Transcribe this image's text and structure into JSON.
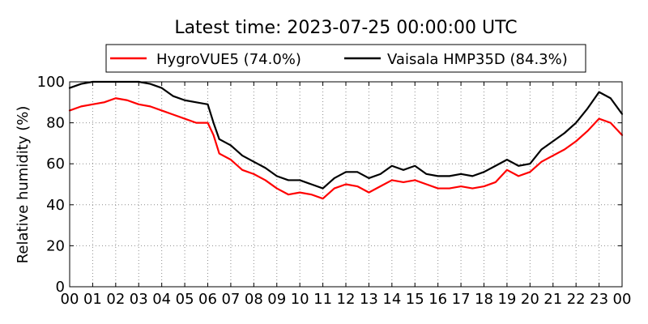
{
  "chart_data": {
    "type": "line",
    "title": "Latest time: 2023-07-25 00:00:00 UTC",
    "xlabel": "",
    "ylabel": "Relative humidity (%)",
    "x_unit": "hour",
    "xlim": [
      0,
      24
    ],
    "ylim": [
      0,
      100
    ],
    "grid": true,
    "legend_position": "top-center",
    "xtick_values": [
      0,
      1,
      2,
      3,
      4,
      5,
      6,
      7,
      8,
      9,
      10,
      11,
      12,
      13,
      14,
      15,
      16,
      17,
      18,
      19,
      20,
      21,
      22,
      23,
      24
    ],
    "xtick_labels": [
      "00",
      "01",
      "02",
      "03",
      "04",
      "05",
      "06",
      "07",
      "08",
      "09",
      "10",
      "11",
      "12",
      "13",
      "14",
      "15",
      "16",
      "17",
      "18",
      "19",
      "20",
      "21",
      "22",
      "23",
      "00"
    ],
    "yticks": [
      0,
      20,
      40,
      60,
      80,
      100
    ],
    "series": [
      {
        "name": "HygroVUE5 (74.0%)",
        "color": "#ff0000",
        "x": [
          0,
          0.5,
          1,
          1.5,
          2,
          2.5,
          3,
          3.5,
          4,
          4.5,
          5,
          5.5,
          6,
          6.25,
          6.5,
          7,
          7.5,
          8,
          8.5,
          9,
          9.5,
          10,
          10.5,
          11,
          11.5,
          12,
          12.5,
          13,
          13.5,
          14,
          14.5,
          15,
          15.5,
          16,
          16.5,
          17,
          17.5,
          18,
          18.5,
          19,
          19.5,
          20,
          20.5,
          21,
          21.5,
          22,
          22.5,
          23,
          23.5,
          24
        ],
        "y": [
          86,
          88,
          89,
          90,
          92,
          91,
          89,
          88,
          86,
          84,
          82,
          80,
          80,
          74,
          65,
          62,
          57,
          55,
          52,
          48,
          45,
          46,
          45,
          43,
          48,
          50,
          49,
          46,
          49,
          52,
          51,
          52,
          50,
          48,
          48,
          49,
          48,
          49,
          51,
          57,
          54,
          56,
          61,
          64,
          67,
          71,
          76,
          82,
          80,
          74
        ]
      },
      {
        "name": "Vaisala HMP35D (84.3%)",
        "color": "#000000",
        "x": [
          0,
          0.5,
          1,
          1.5,
          2,
          2.5,
          3,
          3.5,
          4,
          4.5,
          5,
          5.5,
          6,
          6.25,
          6.5,
          7,
          7.5,
          8,
          8.5,
          9,
          9.5,
          10,
          10.5,
          11,
          11.5,
          12,
          12.5,
          13,
          13.5,
          14,
          14.5,
          15,
          15.5,
          16,
          16.5,
          17,
          17.5,
          18,
          18.5,
          19,
          19.5,
          20,
          20.5,
          21,
          21.5,
          22,
          22.5,
          23,
          23.5,
          24
        ],
        "y": [
          97,
          99,
          100,
          100,
          100,
          100,
          100,
          99,
          97,
          93,
          91,
          90,
          89,
          80,
          72,
          69,
          64,
          61,
          58,
          54,
          52,
          52,
          50,
          48,
          53,
          56,
          56,
          53,
          55,
          59,
          57,
          59,
          55,
          54,
          54,
          55,
          54,
          56,
          59,
          62,
          59,
          60,
          67,
          71,
          75,
          80,
          87,
          95,
          92,
          84.3
        ]
      }
    ]
  }
}
